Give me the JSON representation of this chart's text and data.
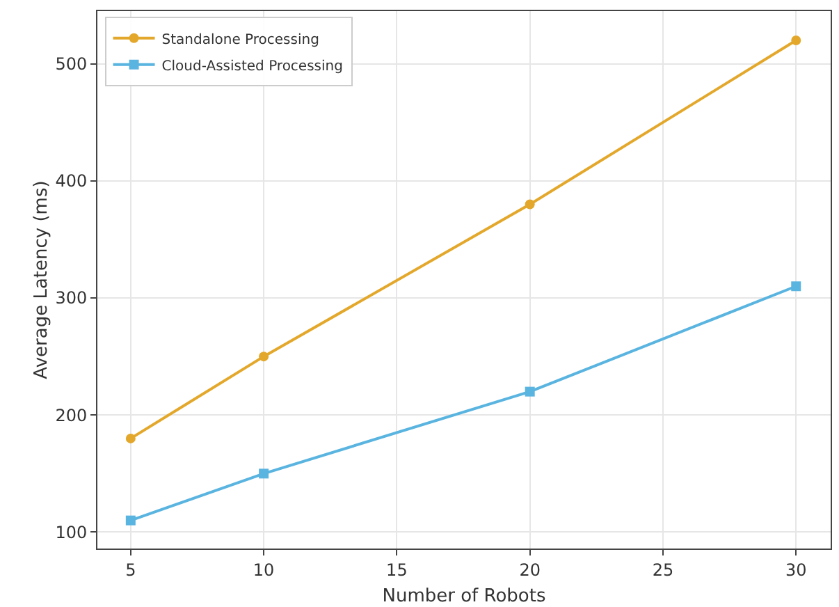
{
  "chart_data": {
    "type": "line",
    "xlabel": "Number of Robots",
    "ylabel": "Average Latency (ms)",
    "x": [
      5,
      10,
      20,
      30
    ],
    "series": [
      {
        "name": "Standalone Processing",
        "color": "#e3a82b",
        "values": [
          180,
          250,
          380,
          520
        ],
        "marker": "circle"
      },
      {
        "name": "Cloud-Assisted Processing",
        "color": "#5ab4e0",
        "values": [
          110,
          150,
          220,
          310
        ],
        "marker": "square"
      }
    ],
    "xlim": [
      3.75,
      31.3
    ],
    "xticks": [
      5,
      10,
      15,
      20,
      25,
      30
    ],
    "ylim": [
      86,
      545
    ],
    "yticks": [
      100,
      200,
      300,
      400,
      500
    ],
    "grid": true,
    "legend": "top left",
    "line_style": "solid"
  }
}
